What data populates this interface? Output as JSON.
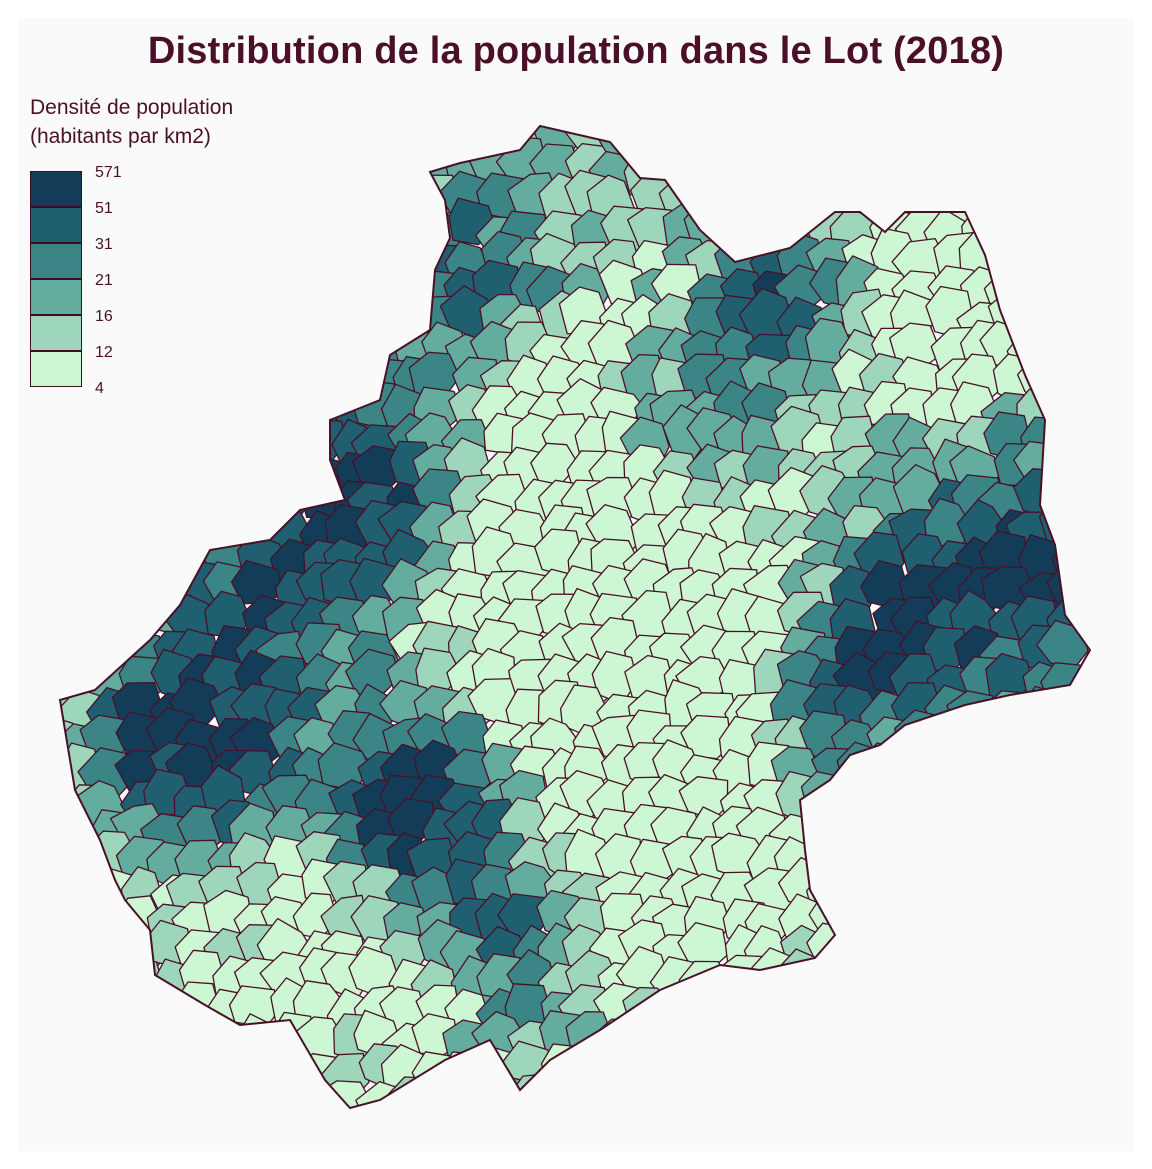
{
  "title": "Distribution de la population dans le Lot (2018)",
  "legend": {
    "title_line1": "Densité de population",
    "title_line2": "(habitants par km2)",
    "classes": [
      {
        "label": "571",
        "color": "#123c58"
      },
      {
        "label": "51",
        "color": "#1f5f70"
      },
      {
        "label": "31",
        "color": "#3b8587"
      },
      {
        "label": "21",
        "color": "#64ac9e"
      },
      {
        "label": "16",
        "color": "#9ed6bb"
      },
      {
        "label": "12",
        "color": "#cdf6d2"
      },
      {
        "label": "4",
        "color": ""
      }
    ]
  },
  "colors": {
    "border": "#4a1028",
    "background": "#fafafa",
    "title": "#4a1028"
  }
}
